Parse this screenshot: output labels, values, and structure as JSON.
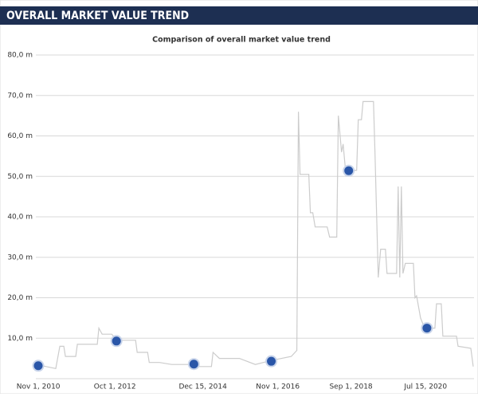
{
  "chart_data": {
    "type": "line",
    "title": "OVERALL MARKET VALUE TREND",
    "subtitle": "Comparison of overall market value trend",
    "x": [
      2010.77,
      2011.27,
      2011.37,
      2011.47,
      2011.51,
      2011.77,
      2011.81,
      2012.31,
      2012.35,
      2012.43,
      2012.67,
      2012.81,
      2013.27,
      2013.31,
      2013.57,
      2013.61,
      2013.87,
      2014.17,
      2014.67,
      2014.87,
      2015.17,
      2015.21,
      2015.37,
      2015.87,
      2016.27,
      2016.67,
      2017.17,
      2017.31,
      2017.35,
      2017.39,
      2017.61,
      2017.65,
      2017.71,
      2017.77,
      2018.07,
      2018.13,
      2018.31,
      2018.35,
      2018.43,
      2018.47,
      2018.53,
      2018.81,
      2018.85,
      2018.93,
      2018.97,
      2019.23,
      2019.27,
      2019.35,
      2019.41,
      2019.53,
      2019.57,
      2019.81,
      2019.85,
      2019.89,
      2019.93,
      2019.97,
      2020.03,
      2020.23,
      2020.27,
      2020.31,
      2020.41,
      2020.49,
      2020.59,
      2020.77,
      2020.81,
      2020.93,
      2020.97,
      2021.31,
      2021.35,
      2021.67,
      2021.73
    ],
    "series": [
      {
        "color": "#cccccc",
        "values": [
          3.5,
          2.5,
          8,
          8,
          5.5,
          5.5,
          8.5,
          8.5,
          12.5,
          11,
          11,
          9.5,
          9.5,
          6.5,
          6.5,
          4,
          4,
          3.5,
          3.5,
          3,
          3,
          6.5,
          5,
          5,
          3.5,
          4.5,
          5.5,
          7,
          66,
          50.5,
          50.5,
          41,
          41,
          37.5,
          37.5,
          35,
          35,
          65,
          56,
          58,
          51.5,
          51.5,
          64,
          64,
          68.5,
          68.5,
          55,
          25,
          32,
          32,
          26,
          26,
          47.5,
          25,
          47.5,
          26,
          28.5,
          28.5,
          20,
          20.5,
          15,
          13,
          12.5,
          12.5,
          18.5,
          18.5,
          10.5,
          10.5,
          8,
          7.5,
          3
        ]
      }
    ],
    "markers": {
      "x": [
        2010.83,
        2012.79,
        2014.73,
        2016.67,
        2018.61,
        2020.57
      ],
      "values": [
        3.2,
        9.3,
        3.6,
        4.3,
        51.4,
        12.5
      ]
    },
    "xlim": [
      2010.77,
      2021.75
    ],
    "xticks": [
      {
        "value": 2010.833,
        "label": "Nov 1, 2010"
      },
      {
        "value": 2012.75,
        "label": "Oct 1, 2012"
      },
      {
        "value": 2014.955,
        "label": "Dec 15, 2014"
      },
      {
        "value": 2016.833,
        "label": "Nov 1, 2016"
      },
      {
        "value": 2018.667,
        "label": "Sep 1, 2018"
      },
      {
        "value": 2020.537,
        "label": "Jul 15, 2020"
      }
    ],
    "ylim": [
      0,
      80
    ],
    "yticks": [
      {
        "value": 10,
        "label": "10,0 m"
      },
      {
        "value": 20,
        "label": "20,0 m"
      },
      {
        "value": 30,
        "label": "30,0 m"
      },
      {
        "value": 40,
        "label": "40,0 m"
      },
      {
        "value": 50,
        "label": "50,0 m"
      },
      {
        "value": 60,
        "label": "60,0 m"
      },
      {
        "value": 70,
        "label": "70,0 m"
      },
      {
        "value": 80,
        "label": "80,0 m"
      }
    ],
    "grid": true
  }
}
